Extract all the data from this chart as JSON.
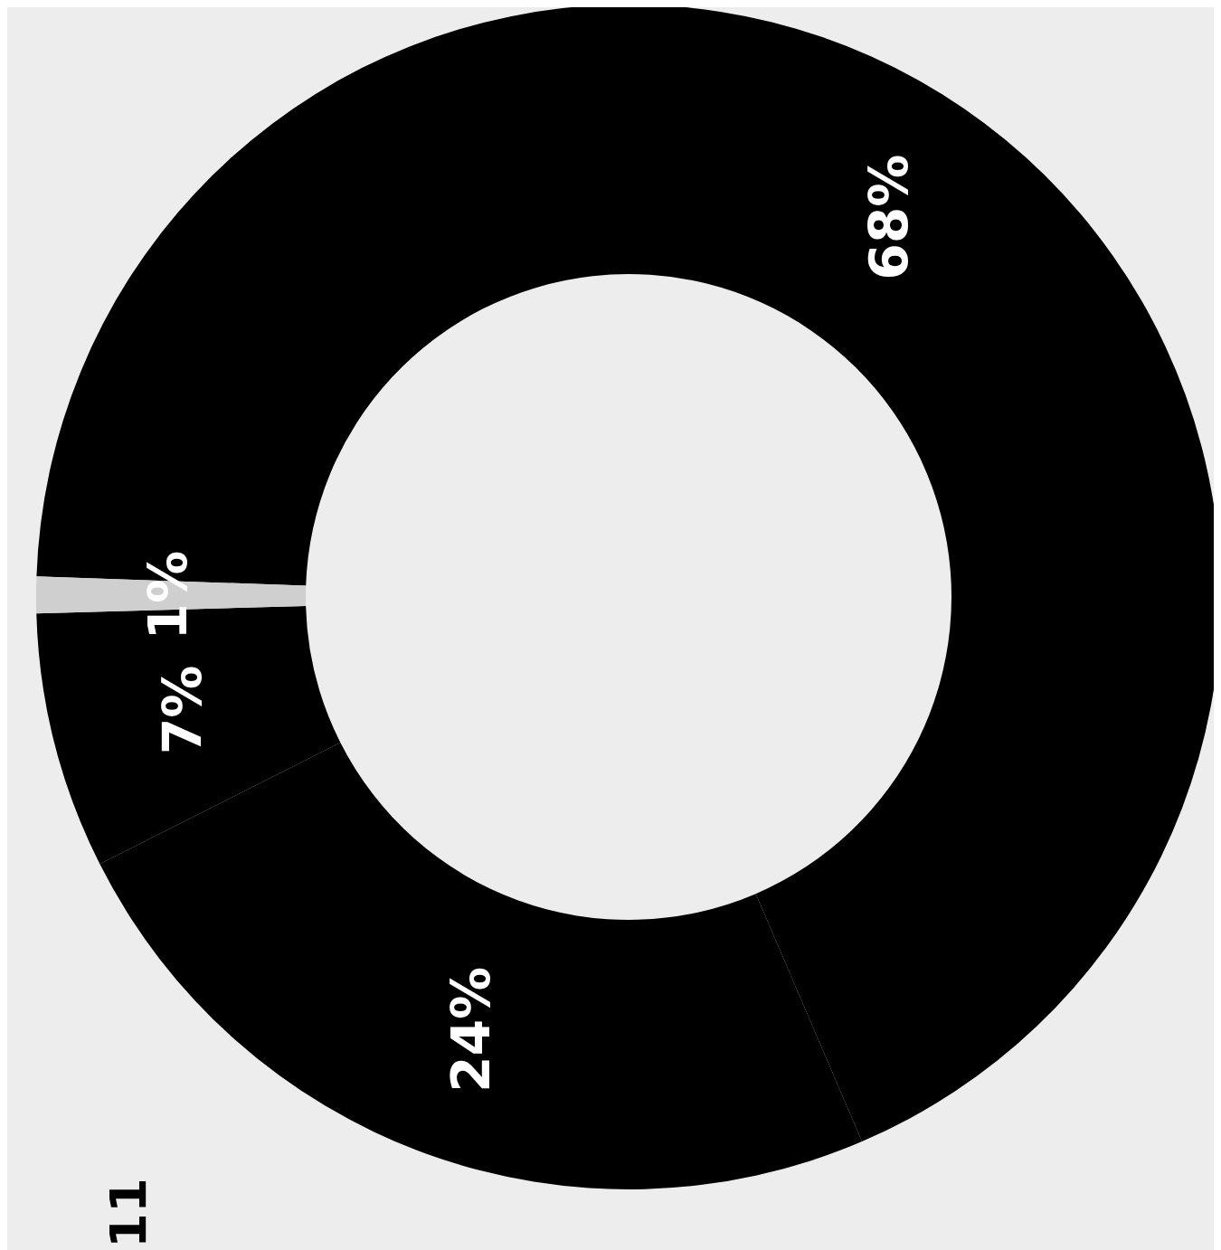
{
  "chart_data": {
    "type": "donut",
    "categories": [
      null,
      null,
      null,
      null
    ],
    "values": [
      68,
      24,
      7,
      1
    ],
    "colors": [
      "#000000",
      "#000000",
      "#000000",
      "#cfcfcf"
    ],
    "value_labels": [
      "68%",
      "24%",
      "7%",
      "1%"
    ],
    "annotations": [
      "11"
    ]
  }
}
